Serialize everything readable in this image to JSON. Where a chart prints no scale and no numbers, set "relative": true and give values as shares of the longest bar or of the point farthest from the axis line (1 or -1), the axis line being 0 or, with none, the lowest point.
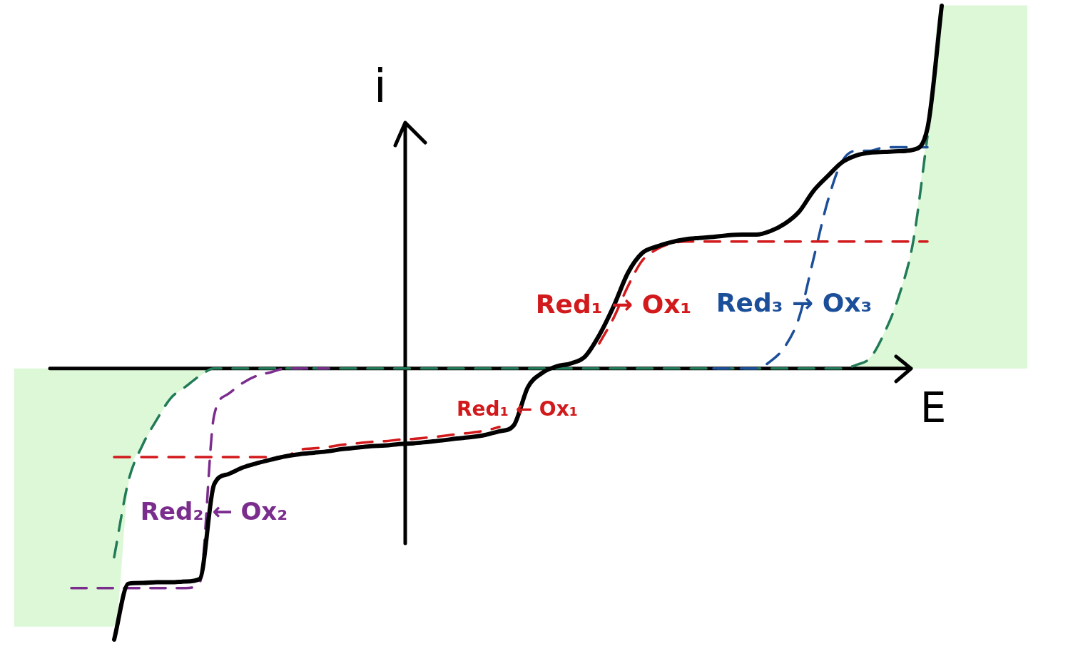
{
  "chart_data": {
    "type": "line",
    "xlabel": "E",
    "ylabel": "i",
    "relative": true,
    "line_style": "solid",
    "categories": [
      null,
      null,
      null,
      null,
      null,
      null,
      null,
      null,
      null,
      null,
      null,
      null,
      null,
      null,
      null,
      null,
      null,
      null,
      null,
      null,
      null,
      null,
      null,
      null,
      null,
      null,
      null,
      null,
      null,
      null,
      null,
      null,
      null,
      null,
      null,
      null,
      null,
      null,
      null,
      null,
      null,
      null,
      null,
      null,
      null,
      null,
      null,
      null,
      null,
      null,
      null,
      null,
      null,
      null,
      null,
      null,
      null,
      null,
      null,
      null,
      null,
      null,
      null,
      null,
      null,
      null,
      null,
      null,
      null,
      null,
      null,
      null,
      null
    ],
    "series": [
      {
        "color": "#000000",
        "values": [
          null,
          null,
          null,
          null,
          null,
          null,
          null,
          -0.747,
          -0.593,
          -0.591,
          -0.589,
          -0.589,
          -0.587,
          -0.58,
          -0.32,
          -0.291,
          -0.273,
          -0.261,
          -0.251,
          -0.242,
          -0.236,
          -0.232,
          -0.228,
          -0.222,
          -0.218,
          -0.214,
          -0.212,
          -0.208,
          -0.206,
          -0.202,
          -0.198,
          -0.193,
          -0.189,
          -0.183,
          -0.173,
          -0.157,
          -0.051,
          -0.012,
          0.006,
          0.014,
          0.033,
          0.092,
          0.171,
          0.263,
          0.318,
          0.336,
          0.348,
          0.356,
          0.36,
          0.363,
          0.367,
          0.369,
          0.369,
          0.379,
          0.399,
          0.432,
          0.489,
          0.53,
          0.568,
          0.587,
          0.595,
          0.597,
          0.599,
          0.603,
          0.662,
          1,
          null,
          null,
          null,
          null,
          null,
          null,
          null
        ]
      },
      {
        "name": "Red₁ → Ox₁",
        "color": "#d2191b",
        "line_style": "dashed",
        "values": [
          null,
          null,
          null,
          null,
          null,
          null,
          null,
          null,
          null,
          null,
          null,
          null,
          null,
          null,
          null,
          null,
          null,
          null,
          null,
          null,
          null,
          null,
          null,
          null,
          null,
          null,
          null,
          null,
          null,
          null,
          null,
          null,
          null,
          null,
          null,
          null,
          null,
          null,
          null,
          null,
          null,
          0.069,
          0.139,
          0.226,
          0.297,
          0.328,
          0.344,
          0.35,
          0.35,
          0.35,
          0.35,
          0.35,
          0.35,
          0.35,
          0.35,
          0.35,
          0.35,
          0.35,
          0.35,
          0.35,
          0.35,
          0.35,
          0.35,
          0.35,
          0.35,
          null,
          null,
          null,
          null,
          null,
          null,
          null,
          null
        ]
      },
      {
        "name": "Red₁ ← Ox₁",
        "color": "#d2191b",
        "line_style": "dashed",
        "values": [
          null,
          null,
          null,
          null,
          null,
          null,
          null,
          -0.244,
          -0.244,
          -0.244,
          -0.244,
          -0.244,
          -0.244,
          -0.244,
          -0.244,
          -0.244,
          -0.244,
          -0.244,
          -0.244,
          -0.242,
          -0.224,
          -0.22,
          -0.216,
          -0.21,
          -0.206,
          -0.202,
          -0.2,
          -0.196,
          -0.194,
          -0.19,
          -0.186,
          -0.181,
          -0.177,
          -0.171,
          -0.161,
          null,
          null,
          null,
          null,
          null,
          null,
          null,
          null,
          null,
          null,
          null,
          null,
          null,
          null,
          null,
          null,
          null,
          null,
          null,
          null,
          null,
          null,
          null,
          null,
          null,
          null,
          null,
          null,
          null,
          null,
          null,
          null,
          null,
          null,
          null,
          null,
          null,
          null
        ]
      },
      {
        "name": "Red₂ ← Ox₂",
        "color": "#7b2d8e",
        "line_style": "dashed",
        "values": [
          null,
          null,
          null,
          null,
          -0.605,
          -0.605,
          -0.605,
          -0.605,
          -0.605,
          -0.605,
          -0.605,
          -0.605,
          -0.605,
          -0.59,
          -0.13,
          -0.07,
          -0.04,
          -0.02,
          -0.01,
          0,
          0,
          0,
          0,
          null,
          null,
          null,
          null,
          null,
          null,
          null,
          null,
          null,
          null,
          null,
          null,
          null,
          null,
          null,
          null,
          null,
          null,
          null,
          null,
          null,
          null,
          null,
          null,
          null,
          null,
          null,
          null,
          null,
          null,
          null,
          null,
          null,
          null,
          null,
          null,
          null,
          null,
          null,
          null,
          null,
          null,
          null,
          null,
          null,
          null,
          null,
          null,
          null,
          null
        ]
      },
      {
        "name": "Red₃ → Ox₃",
        "color": "#1c4f99",
        "line_style": "dashed",
        "values": [
          null,
          null,
          null,
          null,
          null,
          null,
          null,
          null,
          null,
          null,
          null,
          null,
          null,
          null,
          null,
          null,
          null,
          null,
          null,
          null,
          null,
          null,
          null,
          null,
          null,
          null,
          null,
          null,
          null,
          null,
          null,
          null,
          null,
          null,
          null,
          null,
          null,
          null,
          null,
          null,
          null,
          null,
          null,
          null,
          null,
          null,
          null,
          null,
          null,
          0,
          0,
          0,
          0,
          0.02,
          0.06,
          0.14,
          0.3,
          0.46,
          0.57,
          0.6,
          0.6,
          0.61,
          0.61,
          0.61,
          0.61,
          null,
          null,
          null,
          null,
          null,
          null,
          null,
          null
        ]
      },
      {
        "color": "#217a58",
        "line_style": "dashed",
        "values": [
          null,
          null,
          null,
          null,
          null,
          null,
          null,
          -0.52,
          -0.31,
          -0.21,
          -0.14,
          -0.08,
          -0.05,
          -0.02,
          0,
          0,
          0,
          0,
          0,
          0,
          0,
          0,
          0,
          0,
          0,
          0,
          0,
          0,
          0,
          0,
          0,
          0,
          0,
          0,
          0,
          0,
          0,
          0,
          0,
          0,
          0,
          0,
          0,
          0,
          0,
          0,
          0,
          0,
          0,
          0,
          0,
          0,
          0,
          0,
          0,
          0,
          0,
          0,
          0,
          0.01,
          0.03,
          0.1,
          0.2,
          0.35,
          0.64,
          null,
          null,
          null,
          null,
          null,
          null,
          null,
          null
        ]
      },
      {
        "type": "area",
        "color": "#dcf8d6",
        "values": [
          -0.71,
          -0.71,
          -0.71,
          -0.71,
          -0.71,
          -0.71,
          -0.71,
          -0.71,
          -0.31,
          -0.21,
          -0.14,
          -0.08,
          -0.05,
          -0.02,
          0,
          0,
          0,
          0,
          0,
          0,
          0,
          0,
          0,
          0,
          0,
          0,
          0,
          0,
          0,
          0,
          0,
          0,
          0,
          0,
          0,
          0,
          0,
          0,
          0,
          0,
          0,
          0,
          0,
          0,
          0,
          0,
          0,
          0,
          0,
          0,
          0,
          0,
          0,
          0,
          0,
          0,
          0,
          0,
          0,
          0.01,
          0.03,
          0.1,
          0.2,
          0.35,
          0.66,
          1,
          1,
          1,
          1,
          1,
          1,
          1,
          null
        ]
      }
    ]
  }
}
